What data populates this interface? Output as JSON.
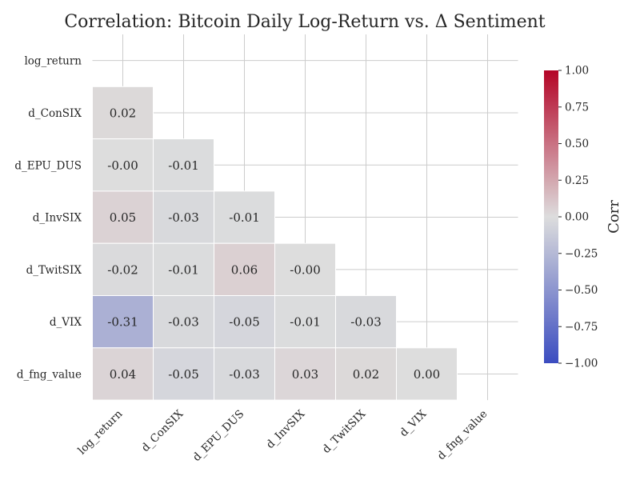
{
  "chart_data": {
    "type": "heatmap",
    "title": "Correlation: Bitcoin Daily Log-Return vs. Δ Sentiment",
    "variables": [
      "log_return",
      "d_ConSIX",
      "d_EPU_DUS",
      "d_InvSIX",
      "d_TwitSIX",
      "d_VIX",
      "d_fng_value"
    ],
    "mask": "upper-triangle-including-diagonal",
    "cells": [
      {
        "row": 1,
        "col": 0,
        "value": 0.02,
        "label": "0.02"
      },
      {
        "row": 2,
        "col": 0,
        "value": 0.0,
        "label": "-0.00"
      },
      {
        "row": 2,
        "col": 1,
        "value": -0.01,
        "label": "-0.01"
      },
      {
        "row": 3,
        "col": 0,
        "value": 0.05,
        "label": "0.05"
      },
      {
        "row": 3,
        "col": 1,
        "value": -0.03,
        "label": "-0.03"
      },
      {
        "row": 3,
        "col": 2,
        "value": -0.01,
        "label": "-0.01"
      },
      {
        "row": 4,
        "col": 0,
        "value": -0.02,
        "label": "-0.02"
      },
      {
        "row": 4,
        "col": 1,
        "value": -0.01,
        "label": "-0.01"
      },
      {
        "row": 4,
        "col": 2,
        "value": 0.06,
        "label": "0.06"
      },
      {
        "row": 4,
        "col": 3,
        "value": 0.0,
        "label": "-0.00"
      },
      {
        "row": 5,
        "col": 0,
        "value": -0.31,
        "label": "-0.31"
      },
      {
        "row": 5,
        "col": 1,
        "value": -0.03,
        "label": "-0.03"
      },
      {
        "row": 5,
        "col": 2,
        "value": -0.05,
        "label": "-0.05"
      },
      {
        "row": 5,
        "col": 3,
        "value": -0.01,
        "label": "-0.01"
      },
      {
        "row": 5,
        "col": 4,
        "value": -0.03,
        "label": "-0.03"
      },
      {
        "row": 6,
        "col": 0,
        "value": 0.04,
        "label": "0.04"
      },
      {
        "row": 6,
        "col": 1,
        "value": -0.05,
        "label": "-0.05"
      },
      {
        "row": 6,
        "col": 2,
        "value": -0.03,
        "label": "-0.03"
      },
      {
        "row": 6,
        "col": 3,
        "value": 0.03,
        "label": "0.03"
      },
      {
        "row": 6,
        "col": 4,
        "value": 0.02,
        "label": "0.02"
      },
      {
        "row": 6,
        "col": 5,
        "value": 0.0,
        "label": "0.00"
      }
    ],
    "colorbar": {
      "label": "Corr",
      "range": [
        -1.0,
        1.0
      ],
      "colormap": "coolwarm",
      "ticks": [
        {
          "value": 1.0,
          "label": "1.00"
        },
        {
          "value": 0.75,
          "label": "0.75"
        },
        {
          "value": 0.5,
          "label": "0.50"
        },
        {
          "value": 0.25,
          "label": "0.25"
        },
        {
          "value": 0.0,
          "label": "0.00"
        },
        {
          "value": -0.25,
          "label": "−0.25"
        },
        {
          "value": -0.5,
          "label": "−0.50"
        },
        {
          "value": -0.75,
          "label": "−0.75"
        },
        {
          "value": -1.0,
          "label": "−1.00"
        }
      ]
    },
    "grid": true,
    "colors": {
      "grid": "#cccccc",
      "cell_border": "#ffffff",
      "text": "#262626",
      "cmap_low": "#3b4cc0",
      "cmap_mid": "#dddddd",
      "cmap_high": "#b40426"
    }
  }
}
